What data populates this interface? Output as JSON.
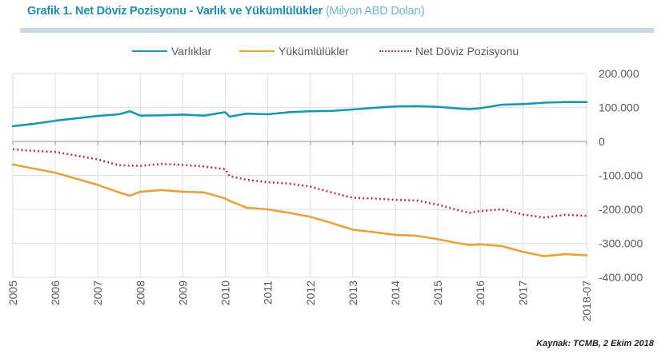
{
  "header": {
    "title_main": "Grafik 1. Net Döviz Pozisyonu - Varlık ve Yükümlülükler",
    "title_unit": "(Milyon ABD Doları)"
  },
  "source": "Kaynak: TCMB, 2 Ekim 2018",
  "colors": {
    "assets": "#1a97b4",
    "liabilities": "#e8a13d",
    "net": "#c0354a",
    "title": "#1d8ea6",
    "grid": "#e3e3e3",
    "zero_line": "#a6a6a6"
  },
  "chart_data": {
    "type": "line",
    "title": "Grafik 1. Net Döviz Pozisyonu - Varlık ve Yükümlülükler (Milyon ABD Doları)",
    "xlabel": "",
    "ylabel": "",
    "x_range": [
      2005.0,
      2018.5
    ],
    "ylim": [
      -400000,
      200000
    ],
    "y_ticks": [
      200000,
      100000,
      0,
      -100000,
      -200000,
      -300000,
      -400000
    ],
    "y_tick_labels": [
      "200.000",
      "100.000",
      "0",
      "-100.000",
      "-200.000",
      "-300.000",
      "-400.000"
    ],
    "x_ticks": [
      2005,
      2006,
      2007,
      2008,
      2009,
      2010,
      2011,
      2012,
      2013,
      2014,
      2015,
      2016,
      2017,
      2018.5
    ],
    "x_tick_labels": [
      "2005",
      "2006",
      "2007",
      "2008",
      "2009",
      "2010",
      "2011",
      "2012",
      "2013",
      "2014",
      "2015",
      "2016",
      "2017",
      "2018-07"
    ],
    "grid": true,
    "legend_position": "top",
    "legend": [
      "Varlıklar",
      "Yükümlülükler",
      "Net Döviz Pozisyonu"
    ],
    "x": [
      2005.0,
      2005.5,
      2006.0,
      2006.5,
      2007.0,
      2007.5,
      2007.75,
      2008.0,
      2008.5,
      2009.0,
      2009.5,
      2010.0,
      2010.1,
      2010.5,
      2011.0,
      2011.5,
      2012.0,
      2012.5,
      2013.0,
      2013.5,
      2014.0,
      2014.5,
      2015.0,
      2015.5,
      2015.75,
      2016.0,
      2016.5,
      2017.0,
      2017.5,
      2018.0,
      2018.5
    ],
    "series": [
      {
        "name": "Varlıklar",
        "style": "solid",
        "values": [
          45000,
          52000,
          61000,
          68000,
          75000,
          80000,
          89000,
          76000,
          77000,
          79000,
          76000,
          86000,
          73000,
          82000,
          80000,
          86000,
          89000,
          90000,
          94000,
          99000,
          103000,
          104000,
          102000,
          97000,
          95000,
          98000,
          108000,
          110000,
          114000,
          116000,
          116000
        ]
      },
      {
        "name": "Yükümlülükler",
        "style": "solid",
        "values": [
          -68000,
          -80000,
          -92000,
          -110000,
          -128000,
          -150000,
          -160000,
          -148000,
          -143000,
          -148000,
          -150000,
          -168000,
          -175000,
          -195000,
          -200000,
          -210000,
          -222000,
          -240000,
          -260000,
          -267000,
          -275000,
          -278000,
          -288000,
          -300000,
          -305000,
          -303000,
          -308000,
          -325000,
          -338000,
          -332000,
          -335000
        ]
      },
      {
        "name": "Net Döviz Pozisyonu",
        "style": "dotted",
        "values": [
          -23000,
          -28000,
          -31000,
          -42000,
          -53000,
          -70000,
          -71000,
          -72000,
          -66000,
          -69000,
          -74000,
          -82000,
          -102000,
          -113000,
          -120000,
          -124000,
          -133000,
          -150000,
          -166000,
          -168000,
          -172000,
          -174000,
          -186000,
          -203000,
          -210000,
          -205000,
          -200000,
          -215000,
          -224000,
          -216000,
          -219000
        ]
      }
    ]
  }
}
